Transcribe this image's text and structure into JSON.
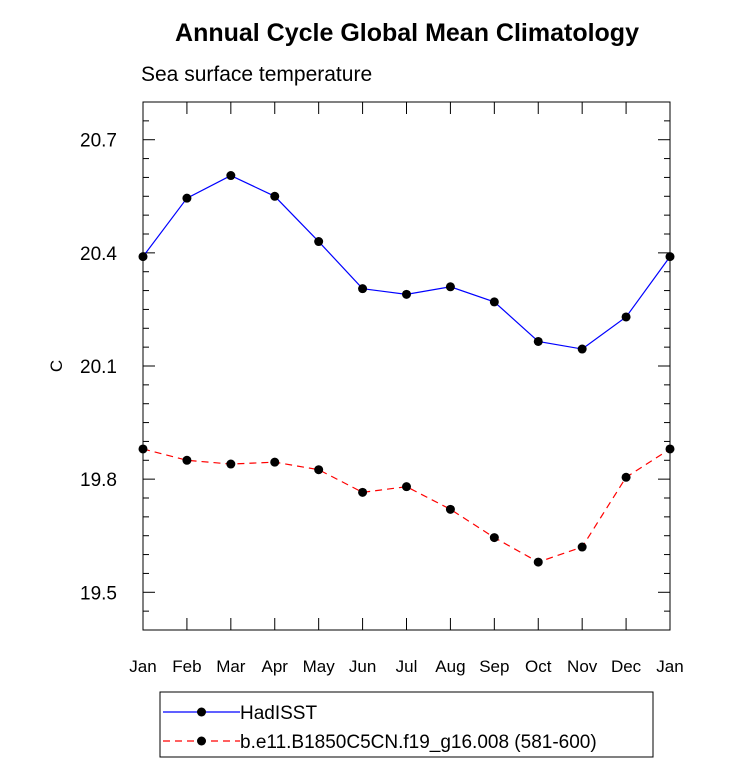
{
  "chart_data": {
    "type": "line",
    "title": "Annual Cycle Global Mean Climatology",
    "subtitle": "Sea surface temperature",
    "xlabel": "",
    "ylabel": "C",
    "categories": [
      "Jan",
      "Feb",
      "Mar",
      "Apr",
      "May",
      "Jun",
      "Jul",
      "Aug",
      "Sep",
      "Oct",
      "Nov",
      "Dec",
      "Jan"
    ],
    "yticks": [
      "19.5",
      "19.8",
      "20.1",
      "20.4",
      "20.7"
    ],
    "ylim": [
      19.4,
      20.8
    ],
    "grid": false,
    "legend_position": "bottom",
    "series": [
      {
        "name": "HadISST",
        "color": "#0000ff",
        "dash": "solid",
        "values": [
          20.39,
          20.545,
          20.605,
          20.55,
          20.43,
          20.305,
          20.29,
          20.31,
          20.27,
          20.165,
          20.145,
          20.23,
          20.39
        ]
      },
      {
        "name": "b.e11.B1850C5CN.f19_g16.008 (581-600)",
        "color": "#ff0000",
        "dash": "dashed",
        "values": [
          19.88,
          19.85,
          19.84,
          19.845,
          19.825,
          19.765,
          19.78,
          19.72,
          19.645,
          19.58,
          19.62,
          19.805,
          19.88
        ]
      }
    ]
  }
}
